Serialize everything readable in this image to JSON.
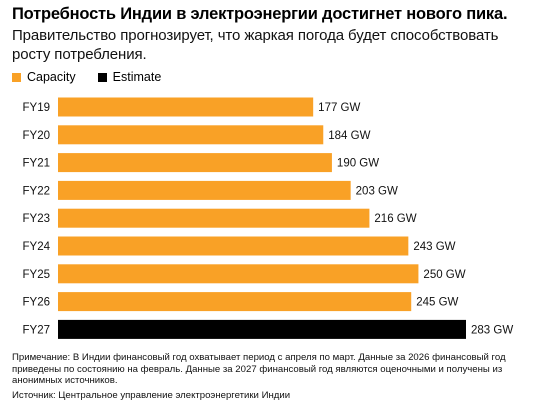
{
  "title": "Потребность Индии в электроэнергии достигнет нового пика.",
  "subtitle": "Правительство прогнозирует, что жаркая погода будет способствовать росту потребления.",
  "legend": [
    {
      "label": "Capacity",
      "color": "#F9A126"
    },
    {
      "label": "Estimate",
      "color": "#000000"
    }
  ],
  "footnote": "Примечание: В Индии финансовый год охватывает период с апреля по март. Данные за 2026 финансовый год приведены по состоянию на февраль. Данные за 2027 финансовый год являются оценочными и получены из анонимных источников.",
  "source": "Источник: Центральное управление электроэнергетики Индии",
  "chart_data": {
    "type": "bar",
    "orientation": "horizontal",
    "categories": [
      "FY19",
      "FY20",
      "FY21",
      "FY22",
      "FY23",
      "FY24",
      "FY25",
      "FY26",
      "FY27"
    ],
    "series": [
      {
        "name": "Capacity",
        "color": "#F9A126",
        "values": [
          177,
          184,
          190,
          203,
          216,
          243,
          250,
          245,
          null
        ]
      },
      {
        "name": "Estimate",
        "color": "#000000",
        "values": [
          null,
          null,
          null,
          null,
          null,
          null,
          null,
          null,
          283
        ]
      }
    ],
    "data_labels": [
      "177 GW",
      "184 GW",
      "190 GW",
      "203 GW",
      "216 GW",
      "243 GW",
      "250 GW",
      "245 GW",
      "283 GW"
    ],
    "xlim": [
      0,
      283
    ],
    "grid": false,
    "legend_position": "top-left"
  }
}
